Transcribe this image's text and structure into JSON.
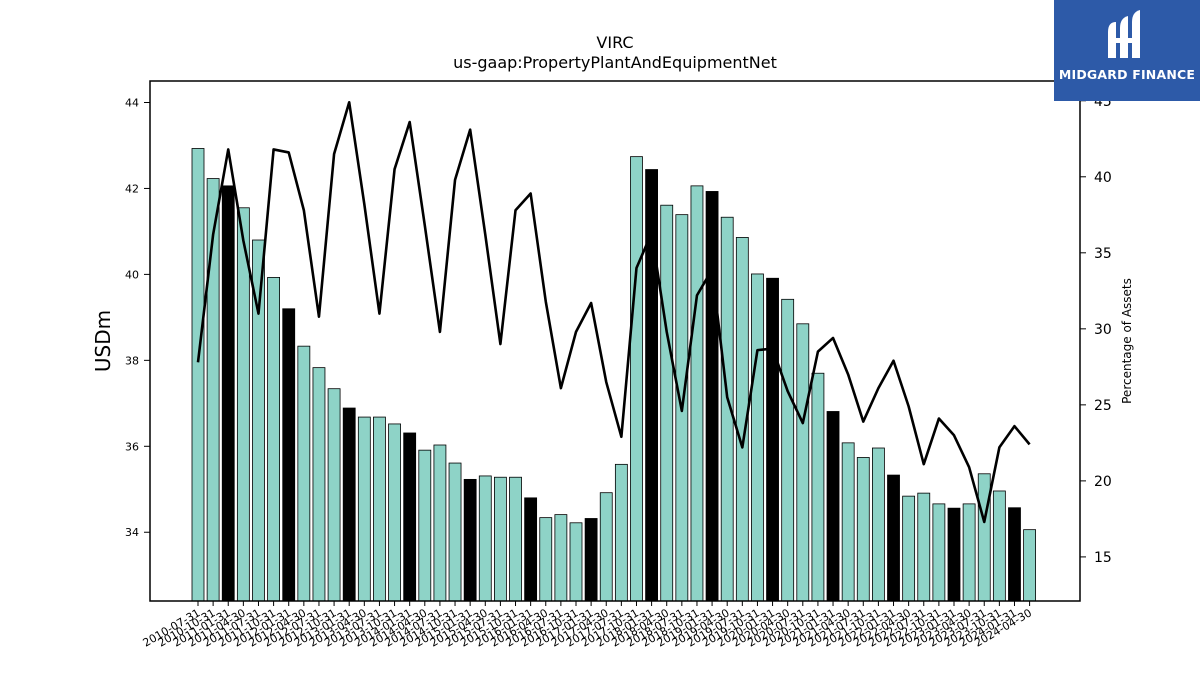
{
  "logo": {
    "brand": "MIDGARD FINANCE"
  },
  "chart_data": {
    "type": "bar",
    "title": "VIRC",
    "subtitle": "us-gaap:PropertyPlantAndEquipmentNet",
    "ylabel": "USDm",
    "y2label": "Percentage of Assets",
    "ylim": [
      32.4,
      44.5
    ],
    "y2lim": [
      12.1,
      46.3
    ],
    "yticks": [
      34,
      36,
      38,
      40,
      42,
      44
    ],
    "y2ticks": [
      15,
      20,
      25,
      30,
      35,
      40,
      45
    ],
    "categories": [
      "2010-07-31",
      "2010-10-31",
      "2011-01-31",
      "2011-04-30",
      "2011-07-31",
      "2011-10-31",
      "2012-01-31",
      "2012-04-30",
      "2012-07-31",
      "2012-10-31",
      "2013-01-31",
      "2013-04-30",
      "2013-07-31",
      "2013-10-31",
      "2014-01-31",
      "2014-04-30",
      "2014-07-31",
      "2014-10-31",
      "2015-01-31",
      "2015-04-30",
      "2015-07-31",
      "2015-10-31",
      "2016-01-31",
      "2016-04-30",
      "2016-07-31",
      "2016-10-31",
      "2017-01-31",
      "2017-04-30",
      "2017-07-31",
      "2017-10-31",
      "2018-01-31",
      "2018-04-30",
      "2018-07-31",
      "2018-10-31",
      "2019-01-31",
      "2019-04-30",
      "2019-07-31",
      "2019-10-31",
      "2020-01-31",
      "2020-04-30",
      "2020-07-31",
      "2020-10-31",
      "2021-01-31",
      "2021-04-30",
      "2021-07-31",
      "2021-10-31",
      "2022-01-31",
      "2022-04-30",
      "2022-07-31",
      "2022-10-31",
      "2023-01-31",
      "2023-04-30",
      "2023-07-31",
      "2023-10-31",
      "2024-01-31",
      "2024-04-30"
    ],
    "xticklabels": [
      "2010-07-31",
      "2010-10-31",
      "2011-01-31",
      "2011-04-30",
      "2011-07-31",
      "2011-10-31",
      "2012-01-31",
      "2012-04-30",
      "2012-07-31",
      "2012-10-31",
      "2013-01-31",
      "2013-04-30",
      "2013-07-31",
      "2013-10-31",
      "2014-01-31",
      "2014-04-30",
      "2014-07-31",
      "2014-10-31",
      "2015-01-31",
      "2015-04-30",
      "2015-07-31",
      "2015-10-31",
      "2016-01-31",
      "2016-04-30",
      "2016-07-31",
      "2016-10-31",
      "2017-01-31",
      "2017-04-30",
      "2017-07-31",
      "2017-10-31",
      "2018-01-31",
      "2018-04-30",
      "2018-07-31",
      "2018-10-31",
      "2019-01-31",
      "2019-04-30",
      "2019-07-31",
      "2019-10-31",
      "2020-01-31",
      "2020-04-30",
      "2020-07-31",
      "2020-10-31",
      "2021-01-31",
      "2021-04-30",
      "2021-07-31",
      "2021-10-31",
      "2022-01-31",
      "2022-04-30",
      "2022-07-31",
      "2022-10-31",
      "2023-01-31",
      "2023-04-30",
      "2023-07-31",
      "2023-10-31",
      "2024-01-31",
      "2024-04-30"
    ],
    "series": [
      {
        "type": "bar",
        "axis": "left",
        "values": [
          42.93,
          42.23,
          42.06,
          41.55,
          40.8,
          39.93,
          39.2,
          38.33,
          37.83,
          37.34,
          36.89,
          36.68,
          36.68,
          36.52,
          36.31,
          35.91,
          36.03,
          35.61,
          35.23,
          35.31,
          35.28,
          35.28,
          34.8,
          34.34,
          34.41,
          34.22,
          34.32,
          34.92,
          35.58,
          42.74,
          42.44,
          41.61,
          41.39,
          42.06,
          41.93,
          41.33,
          40.86,
          40.01,
          39.91,
          39.42,
          38.85,
          37.7,
          36.81,
          36.08,
          35.74,
          35.96,
          35.33,
          34.84,
          34.91,
          34.66,
          34.56,
          34.66,
          35.36,
          34.96,
          34.57,
          34.06
        ],
        "colors": [
          "#8ed3c7",
          "#8ed3c7",
          "#000000",
          "#8ed3c7",
          "#8ed3c7",
          "#8ed3c7",
          "#000000",
          "#8ed3c7",
          "#8ed3c7",
          "#8ed3c7",
          "#000000",
          "#8ed3c7",
          "#8ed3c7",
          "#8ed3c7",
          "#000000",
          "#8ed3c7",
          "#8ed3c7",
          "#8ed3c7",
          "#000000",
          "#8ed3c7",
          "#8ed3c7",
          "#8ed3c7",
          "#000000",
          "#8ed3c7",
          "#8ed3c7",
          "#8ed3c7",
          "#000000",
          "#8ed3c7",
          "#8ed3c7",
          "#8ed3c7",
          "#000000",
          "#8ed3c7",
          "#8ed3c7",
          "#8ed3c7",
          "#000000",
          "#8ed3c7",
          "#8ed3c7",
          "#8ed3c7",
          "#000000",
          "#8ed3c7",
          "#8ed3c7",
          "#8ed3c7",
          "#000000",
          "#8ed3c7",
          "#8ed3c7",
          "#8ed3c7",
          "#000000",
          "#8ed3c7",
          "#8ed3c7",
          "#8ed3c7",
          "#000000",
          "#8ed3c7",
          "#8ed3c7",
          "#8ed3c7",
          "#000000",
          "#8ed3c7"
        ]
      },
      {
        "type": "line",
        "axis": "right",
        "color": "#000000",
        "values": [
          27.8,
          36.2,
          41.8,
          35.8,
          31.0,
          41.8,
          41.6,
          37.8,
          30.8,
          41.5,
          44.9,
          38.2,
          31.0,
          40.5,
          43.6,
          36.8,
          29.8,
          39.8,
          43.1,
          36.2,
          29.0,
          37.8,
          38.9,
          31.8,
          26.1,
          29.8,
          31.7,
          26.5,
          22.9,
          34.0,
          36.3,
          29.8,
          24.6,
          32.2,
          33.9,
          25.5,
          22.2,
          28.6,
          28.7,
          25.9,
          23.8,
          28.5,
          29.4,
          27.0,
          23.9,
          26.1,
          27.9,
          24.9,
          21.1,
          24.1,
          23.0,
          20.9,
          17.3,
          22.2,
          23.6,
          22.4
        ]
      }
    ],
    "grid": false,
    "legend": "none"
  }
}
